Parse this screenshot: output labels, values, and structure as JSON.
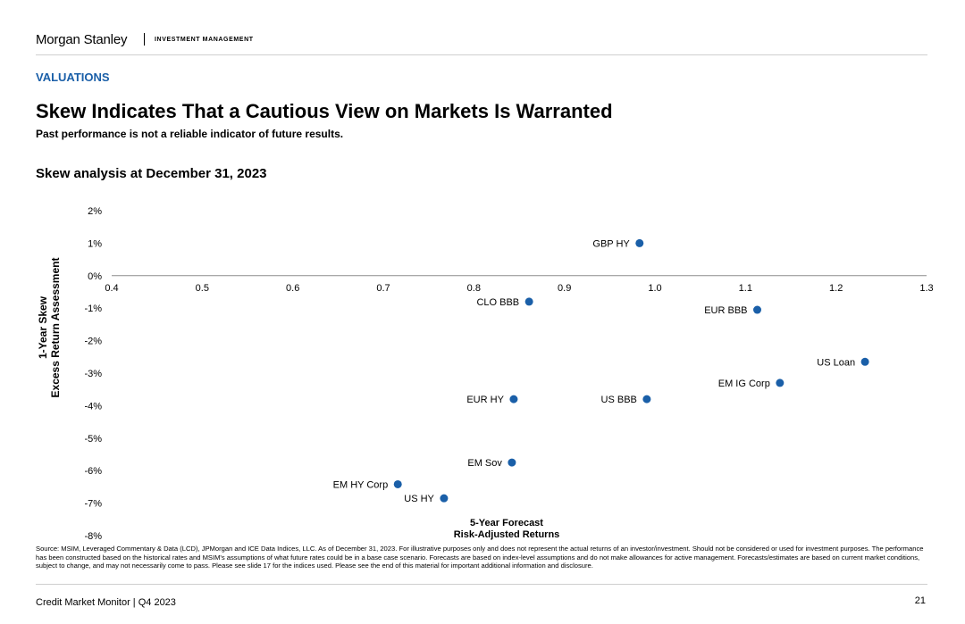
{
  "header": {
    "brand": "Morgan Stanley",
    "brand_sub": "INVESTMENT MANAGEMENT"
  },
  "section_tag": "VALUATIONS",
  "title": "Skew Indicates That a Cautious View on Markets Is Warranted",
  "subtitle": "Past performance is not a reliable indicator of future results.",
  "chart_title": "Skew analysis at December 31, 2023",
  "chart_data": {
    "type": "scatter",
    "xlabel_lines": [
      "5-Year Forecast",
      "Risk-Adjusted Returns"
    ],
    "ylabel_lines": [
      "1-Year Skew",
      "Excess Return Assessment"
    ],
    "xlim": [
      0.4,
      1.3
    ],
    "ylim": [
      -8,
      2
    ],
    "x_ticks": [
      "0.4",
      "0.5",
      "0.6",
      "0.7",
      "0.8",
      "0.9",
      "1.0",
      "1.1",
      "1.2",
      "1.3"
    ],
    "y_ticks": [
      "2%",
      "1%",
      "0%",
      "-1%",
      "-2%",
      "-3%",
      "-4%",
      "-5%",
      "-6%",
      "-7%",
      "-8%"
    ],
    "point_color": "#1a5fa8",
    "points": [
      {
        "label": "GBP HY",
        "x": 0.983,
        "y": 1.0
      },
      {
        "label": "CLO BBB",
        "x": 0.861,
        "y": -0.8
      },
      {
        "label": "EUR BBB",
        "x": 1.113,
        "y": -1.05
      },
      {
        "label": "US Loan",
        "x": 1.232,
        "y": -2.65
      },
      {
        "label": "EM IG Corp",
        "x": 1.138,
        "y": -3.3
      },
      {
        "label": "EUR HY",
        "x": 0.844,
        "y": -3.8
      },
      {
        "label": "US BBB",
        "x": 0.991,
        "y": -3.8
      },
      {
        "label": "EM Sov",
        "x": 0.842,
        "y": -5.75
      },
      {
        "label": "EM HY Corp",
        "x": 0.716,
        "y": -6.42
      },
      {
        "label": "US HY",
        "x": 0.767,
        "y": -6.85
      }
    ]
  },
  "source": "Source: MSIM, Leveraged Commentary & Data (LCD), JPMorgan and ICE Data Indices, LLC. As of December 31, 2023. For illustrative purposes only and does not represent the actual returns of an investor/investment. Should not be considered or used for investment purposes. The performance has been constructed based on the historical rates and MSIM's assumptions of what future rates could be in a base case scenario. Forecasts are based on index-level assumptions and do not make allowances for active management. Forecasts/estimates are based on current market conditions, subject to change, and may not necessarily come to pass. Please see slide 17 for the indices used. Please see the end of this material for important additional information and disclosure.",
  "footer": {
    "left": "Credit Market Monitor | Q4 2023",
    "page": "21"
  }
}
